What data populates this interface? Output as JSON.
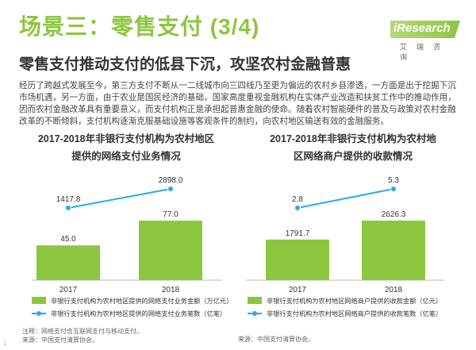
{
  "slide": {
    "title": "场景三：零售支付 (3/4)",
    "subtitle": "零售支付推动支付的低县下沉，攻坚农村金融普惠",
    "intro": "经历了跨越式发展至今，第三方支付不断从一二线城市向三四线乃至更为偏远的农村乡县渗透，一方面是出于挖掘下沉市场机遇，另一方面，由于农业是国民经济的基础，国家高度重视金融机构在实体产业改造和扶贫工作中的推动作用，因而农村金融改革具有重要意义，而支付机构正是承担起普惠金融的使命。随着农村智能硬件的普及与政策对农村金融改革的不断倾斜，支付机构逐渐克服基础设施等客观条件的制约，向农村地区输送有效的金融服务。",
    "logo_text": "iResearch",
    "logo_sub": "艾瑞咨询",
    "watermark": "1"
  },
  "colors": {
    "accent": "#8cc63f",
    "bar": "#8cc63f",
    "line": "#29abe2"
  },
  "chart_data": [
    {
      "type": "bar",
      "title": "2017-2018年非银行支付机构为农村地区提供的网络支付业务情况",
      "title_lines": [
        "2017-2018年非银行支付机构为农村地区",
        "提供的网络支付业务情况"
      ],
      "categories": [
        "2017",
        "2018"
      ],
      "series": [
        {
          "name": "非银行支付机构为农村地区提供的网络支付业务金额（万亿元）",
          "kind": "bar",
          "values": [
            45.0,
            77.0
          ],
          "labels": [
            "45.0",
            "77.0"
          ]
        },
        {
          "name": "非银行支付机构为农村地区提供的网络支付业务笔数（亿笔）",
          "kind": "line",
          "values": [
            1417.8,
            2898.0
          ],
          "labels": [
            "1417.8",
            "2898.0"
          ]
        }
      ],
      "source": "注释：网络支付含互联网支付与移动支付。来源：中国支付清算协会。",
      "source_lines": [
        "注释：网络支付含互联网支付与移动支付。",
        "来源：中国支付清算协会。"
      ]
    },
    {
      "type": "bar",
      "title": "2017-2018年非银行支付机构为农村地区网络商户提供的收款情况",
      "title_lines": [
        "2017-2018年非银行支付机构为农村地",
        "区网络商户提供的收款情况"
      ],
      "categories": [
        "2017",
        "2018"
      ],
      "series": [
        {
          "name": "非银行支付机构为农村地区网络商户提供的收款金额（亿元）",
          "kind": "bar",
          "values": [
            1791.7,
            2626.3
          ],
          "labels": [
            "1791.7",
            "2626.3"
          ]
        },
        {
          "name": "非银行支付机构为农村地区网络商户提供的收款笔数（亿笔）",
          "kind": "line",
          "values": [
            2.8,
            5.3
          ],
          "labels": [
            "2.8",
            "5.3"
          ]
        }
      ],
      "source": "来源：中国支付清算协会。",
      "source_lines": [
        "来源：中国支付清算协会。"
      ]
    }
  ]
}
